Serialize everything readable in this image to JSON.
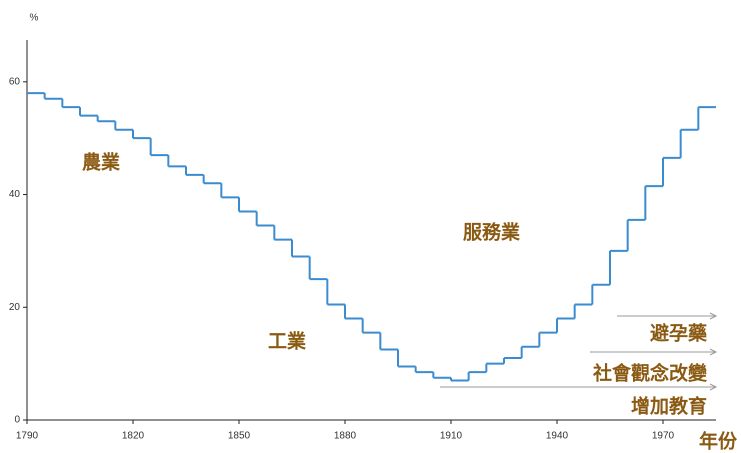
{
  "chart_data": {
    "type": "step",
    "y_unit": "%",
    "x_label": "年份",
    "x": [
      1790,
      1795,
      1800,
      1805,
      1810,
      1815,
      1820,
      1825,
      1830,
      1835,
      1840,
      1845,
      1850,
      1855,
      1860,
      1865,
      1870,
      1875,
      1880,
      1885,
      1890,
      1895,
      1900,
      1905,
      1910,
      1915,
      1920,
      1925,
      1930,
      1935,
      1940,
      1945,
      1950,
      1955,
      1960,
      1965,
      1970,
      1975,
      1980
    ],
    "values": [
      58,
      57,
      55.5,
      54,
      53,
      51.5,
      50,
      47,
      45,
      43.5,
      42,
      39.5,
      37,
      34.5,
      32,
      29,
      25,
      20.5,
      18,
      15.5,
      12.5,
      9.5,
      8.5,
      7.5,
      7,
      8.5,
      10,
      11,
      13,
      15.5,
      18,
      20.5,
      24,
      30,
      35.5,
      41.5,
      46.5,
      51.5,
      55.5
    ],
    "color": "#3b8bd1",
    "xlim": [
      1790,
      1985
    ],
    "ylim": [
      0,
      66
    ],
    "xticks": [
      1790,
      1820,
      1850,
      1880,
      1910,
      1940,
      1970
    ],
    "yticks": [
      0,
      20,
      40,
      60
    ],
    "annotations": [
      "農業",
      "工業",
      "服務業",
      "避孕藥",
      "社會觀念改變",
      "增加教育"
    ]
  }
}
